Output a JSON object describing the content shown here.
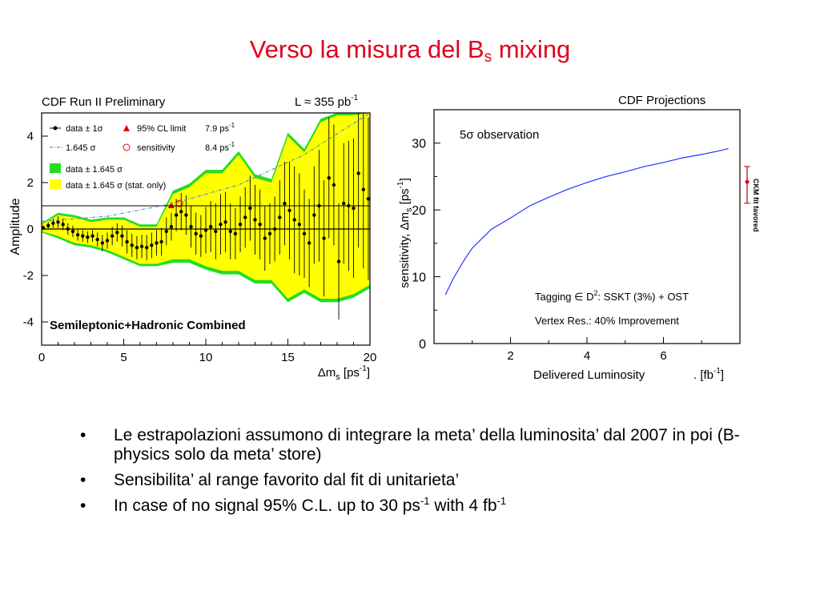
{
  "slide": {
    "title": "Verso la misura del B",
    "title_sub": "s",
    "title_end": " mixing"
  },
  "bullets": [
    {
      "text": "Le estrapolazioni assumono di integrare la meta’ della luminosita’ dal 2007 in poi (B-physics solo da meta’ store)"
    },
    {
      "text": "Sensibilita’ al range favorito dal fit di unitarieta’"
    },
    {
      "parts": [
        "In case of no signal 95% C.L. up to 30 ps",
        "-1",
        " with 4 fb",
        "-1"
      ]
    }
  ],
  "bullet_symbol": "•",
  "colors": {
    "title": "#e0001b",
    "yellow_band": "#ffff00",
    "green_band": "#22dd22",
    "limit_marker": "#e00000",
    "projection_curve": "#2233ff",
    "ckm_label": "#b00000"
  },
  "chart_data": [
    {
      "type": "scatter",
      "title": "CDF Run II Preliminary",
      "luminosity_label": "L ≈ 355 pb",
      "luminosity_sup": "-1",
      "xlabel": "Δm",
      "xlabel_sub": "s",
      "xlabel_unit": " [ps",
      "xlabel_sup": "-1",
      "xlabel_end": "]",
      "ylabel": "Amplitude",
      "xlim": [
        0,
        20
      ],
      "ylim": [
        -5,
        5
      ],
      "xticks": [
        0,
        5,
        10,
        15,
        20
      ],
      "yticks": [
        -4,
        -2,
        0,
        2,
        4
      ],
      "annotation": "Semileptonic+Hadronic Combined",
      "legend": {
        "data_label": "data ± 1σ",
        "limit_label": "95% CL limit",
        "limit_value": "7.9 ps",
        "sensitivity_curve_label": "1.645 σ",
        "sensitivity_label": "sensitivity",
        "sensitivity_value": "8.4 ps",
        "value_sup": "-1",
        "green_label": "data ± 1.645 σ",
        "yellow_label": "data ± 1.645 σ (stat. only)"
      },
      "reference_line": 1,
      "limit_point": {
        "x": 7.9,
        "y": 1.0
      },
      "sensitivity_point": {
        "x": 8.4,
        "y": 1.1
      },
      "sensitivity_curve": {
        "x": [
          0,
          4,
          8,
          12,
          16,
          20
        ],
        "y": [
          0.33,
          0.55,
          1.1,
          1.9,
          3.2,
          5.0
        ]
      },
      "x": [
        0.1,
        0.4,
        0.7,
        1.0,
        1.3,
        1.6,
        1.9,
        2.2,
        2.5,
        2.8,
        3.1,
        3.4,
        3.7,
        4.0,
        4.3,
        4.6,
        4.9,
        5.2,
        5.5,
        5.8,
        6.1,
        6.4,
        6.7,
        7.0,
        7.3,
        7.6,
        7.9,
        8.2,
        8.5,
        8.8,
        9.1,
        9.4,
        9.7,
        10.0,
        10.3,
        10.6,
        10.9,
        11.2,
        11.5,
        11.8,
        12.1,
        12.4,
        12.7,
        13.0,
        13.3,
        13.6,
        13.9,
        14.2,
        14.5,
        14.8,
        15.1,
        15.4,
        15.7,
        16.0,
        16.3,
        16.6,
        16.9,
        17.2,
        17.5,
        17.8,
        18.1,
        18.4,
        18.7,
        19.0,
        19.3,
        19.6,
        19.9
      ],
      "y": [
        0.05,
        0.15,
        0.25,
        0.3,
        0.2,
        0.0,
        -0.1,
        -0.25,
        -0.3,
        -0.35,
        -0.3,
        -0.45,
        -0.6,
        -0.5,
        -0.3,
        -0.15,
        -0.3,
        -0.55,
        -0.7,
        -0.8,
        -0.75,
        -0.8,
        -0.7,
        -0.6,
        -0.55,
        -0.1,
        0.1,
        0.6,
        0.75,
        0.6,
        0.1,
        -0.2,
        -0.3,
        -0.05,
        0.1,
        -0.1,
        0.2,
        0.3,
        -0.1,
        -0.2,
        0.2,
        0.5,
        0.9,
        0.4,
        0.2,
        -0.4,
        -0.2,
        0.0,
        0.5,
        1.1,
        0.8,
        0.4,
        0.2,
        -0.2,
        -0.6,
        0.6,
        1.0,
        -0.4,
        2.2,
        1.9,
        -1.4,
        1.1,
        1.0,
        0.9,
        2.4,
        1.7,
        1.3
      ],
      "err_1sigma": [
        0.1,
        0.15,
        0.2,
        0.25,
        0.25,
        0.25,
        0.25,
        0.25,
        0.25,
        0.25,
        0.25,
        0.3,
        0.35,
        0.35,
        0.4,
        0.4,
        0.45,
        0.5,
        0.5,
        0.5,
        0.5,
        0.55,
        0.55,
        0.55,
        0.6,
        0.6,
        0.6,
        0.7,
        0.8,
        0.85,
        0.9,
        0.9,
        0.9,
        1.0,
        1.1,
        1.2,
        1.3,
        1.3,
        1.2,
        1.1,
        1.2,
        1.3,
        1.4,
        1.5,
        1.5,
        1.4,
        1.3,
        1.4,
        1.6,
        1.8,
        2.1,
        2.3,
        2.2,
        1.9,
        1.9,
        2.1,
        2.4,
        2.5,
        2.6,
        2.6,
        2.5,
        2.6,
        2.8,
        3.0,
        3.2,
        3.4,
        3.5
      ],
      "band_1645_stat": {
        "x": [
          0,
          1,
          2,
          3,
          4,
          5,
          6,
          7,
          8,
          9,
          10,
          11,
          12,
          13,
          14,
          15,
          16,
          17,
          18,
          19,
          20
        ],
        "y_low": [
          -0.1,
          -0.3,
          -0.6,
          -0.7,
          -0.9,
          -1.2,
          -1.5,
          -1.5,
          -1.3,
          -1.3,
          -1.6,
          -1.8,
          -1.8,
          -2.2,
          -2.2,
          -3.0,
          -2.6,
          -3.0,
          -3.0,
          -2.8,
          -2.4
        ],
        "y_high": [
          0.2,
          0.6,
          0.5,
          0.3,
          0.4,
          0.4,
          0.1,
          0.1,
          1.5,
          1.8,
          2.4,
          2.4,
          3.2,
          2.2,
          2.0,
          4.0,
          3.3,
          4.6,
          4.9,
          4.9,
          5.0
        ]
      },
      "band_1645": {
        "x": [
          0,
          1,
          2,
          3,
          4,
          5,
          6,
          7,
          8,
          9,
          10,
          11,
          12,
          13,
          14,
          15,
          16,
          17,
          18,
          19,
          20
        ],
        "y_low": [
          -0.15,
          -0.4,
          -0.7,
          -0.8,
          -1.0,
          -1.3,
          -1.6,
          -1.6,
          -1.45,
          -1.45,
          -1.75,
          -1.95,
          -1.95,
          -2.35,
          -2.35,
          -3.15,
          -2.75,
          -3.15,
          -3.15,
          -2.95,
          -2.55
        ],
        "y_high": [
          0.25,
          0.7,
          0.6,
          0.4,
          0.5,
          0.5,
          0.2,
          0.2,
          1.65,
          1.95,
          2.55,
          2.55,
          3.35,
          2.35,
          2.15,
          4.15,
          3.45,
          4.75,
          5.0,
          5.0,
          5.0
        ]
      }
    },
    {
      "type": "line",
      "title": "CDF Projections",
      "annotation": "5σ observation",
      "ylabel": "sensitivity, Δm",
      "ylabel_sub": "s",
      "ylabel_unit": " [ps",
      "ylabel_sup": "-1",
      "ylabel_end": "]",
      "xlabel": "Delivered Luminosity",
      "xlabel_unit": ". [fb",
      "xlabel_sup": "-1",
      "xlabel_end": "]",
      "xlim": [
        0,
        8
      ],
      "ylim": [
        0,
        35
      ],
      "xticks": [
        2,
        4,
        6
      ],
      "yticks": [
        0,
        10,
        20,
        30
      ],
      "note1_a": "Tagging ∈ D",
      "note1_sup": "2",
      "note1_b": ": SSKT (3%) + OST",
      "note2": "Vertex Res.: 40% Improvement",
      "side_label": "CKM fit favored",
      "side_range": [
        21,
        26.5
      ],
      "side_point": 24.2,
      "series": [
        {
          "x": [
            0.3,
            0.5,
            0.8,
            1.0,
            1.5,
            2.0,
            2.5,
            3.0,
            3.5,
            4.0,
            4.5,
            5.0,
            5.5,
            6.0,
            6.5,
            7.0,
            7.5,
            7.7
          ],
          "y": [
            7.3,
            9.7,
            12.6,
            14.3,
            17.1,
            18.8,
            20.6,
            21.9,
            23.1,
            24.1,
            25.0,
            25.7,
            26.5,
            27.1,
            27.8,
            28.3,
            28.9,
            29.2
          ]
        }
      ]
    }
  ]
}
